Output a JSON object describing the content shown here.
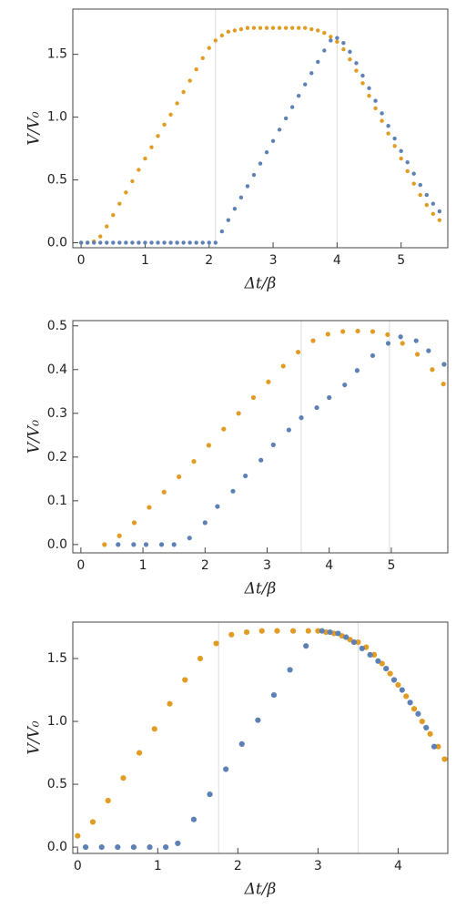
{
  "chart_data": [
    {
      "type": "scatter",
      "xlabel": "Δt/β",
      "ylabel": "V/V₀",
      "xlim": [
        -0.13,
        5.73
      ],
      "ylim": [
        -0.04,
        1.86
      ],
      "xticks": [
        0,
        1,
        2,
        3,
        4,
        5
      ],
      "yticks": [
        {
          "value": 0,
          "label": "0.0"
        },
        0.5,
        {
          "value": 1,
          "label": "1.0"
        },
        1.5
      ],
      "vlines": [
        2.1,
        4.0
      ],
      "series": [
        {
          "color": "#e19c24",
          "x": [
            0,
            0.1,
            0.2,
            0.3,
            0.4,
            0.5,
            0.6,
            0.7,
            0.8,
            0.9,
            1,
            1.1,
            1.2,
            1.3,
            1.4,
            1.5,
            1.6,
            1.7,
            1.8,
            1.9,
            2,
            2.1,
            2.2,
            2.3,
            2.4,
            2.5,
            2.6,
            2.7,
            2.8,
            2.9,
            3,
            3.1,
            3.2,
            3.3,
            3.4,
            3.5,
            3.6,
            3.7,
            3.8,
            3.9,
            4,
            4.1,
            4.2,
            4.3,
            4.4,
            4.5,
            4.6,
            4.7,
            4.8,
            4.9,
            5,
            5.1,
            5.2,
            5.3,
            5.4,
            5.5,
            5.6
          ],
          "values": [
            0,
            0,
            0.01,
            0.05,
            0.13,
            0.22,
            0.31,
            0.4,
            0.49,
            0.58,
            0.67,
            0.76,
            0.85,
            0.94,
            1.02,
            1.11,
            1.2,
            1.29,
            1.38,
            1.47,
            1.55,
            1.61,
            1.65,
            1.68,
            1.69,
            1.7,
            1.71,
            1.71,
            1.71,
            1.71,
            1.71,
            1.71,
            1.71,
            1.71,
            1.71,
            1.71,
            1.7,
            1.69,
            1.67,
            1.64,
            1.6,
            1.54,
            1.46,
            1.37,
            1.27,
            1.17,
            1.07,
            0.97,
            0.87,
            0.77,
            0.67,
            0.57,
            0.47,
            0.38,
            0.3,
            0.23,
            0.18
          ]
        },
        {
          "color": "#5e81b5",
          "x": [
            0,
            0.1,
            0.2,
            0.3,
            0.4,
            0.5,
            0.6,
            0.7,
            0.8,
            0.9,
            1,
            1.1,
            1.2,
            1.3,
            1.4,
            1.5,
            1.6,
            1.7,
            1.8,
            1.9,
            2,
            2.1,
            2.2,
            2.3,
            2.4,
            2.5,
            2.6,
            2.7,
            2.8,
            2.9,
            3,
            3.1,
            3.2,
            3.3,
            3.4,
            3.5,
            3.6,
            3.7,
            3.8,
            3.9,
            4,
            4.1,
            4.2,
            4.3,
            4.4,
            4.5,
            4.6,
            4.7,
            4.8,
            4.9,
            5,
            5.1,
            5.2,
            5.3,
            5.4,
            5.5,
            5.6
          ],
          "values": [
            0,
            0,
            0,
            0,
            0,
            0,
            0,
            0,
            0,
            0,
            0,
            0,
            0,
            0,
            0,
            0,
            0,
            0,
            0,
            0,
            0,
            0,
            0.09,
            0.18,
            0.27,
            0.36,
            0.45,
            0.54,
            0.63,
            0.72,
            0.81,
            0.9,
            0.99,
            1.08,
            1.17,
            1.26,
            1.35,
            1.44,
            1.53,
            1.61,
            1.63,
            1.59,
            1.52,
            1.43,
            1.33,
            1.23,
            1.13,
            1.03,
            0.93,
            0.83,
            0.73,
            0.64,
            0.55,
            0.46,
            0.38,
            0.31,
            0.25
          ]
        }
      ]
    },
    {
      "type": "scatter",
      "xlabel": "Δt/β",
      "ylabel": "V/V₀",
      "xlim": [
        -0.13,
        5.91
      ],
      "ylim": [
        -0.019,
        0.512
      ],
      "xticks": [
        0,
        1,
        2,
        3,
        4,
        5
      ],
      "yticks": [
        {
          "value": 0,
          "label": "0.0"
        },
        0.1,
        0.2,
        0.3,
        0.4,
        0.5
      ],
      "vlines": [
        3.55,
        4.97
      ],
      "series": [
        {
          "color": "#e19c24",
          "x": [
            0.38,
            0.62,
            0.86,
            1.1,
            1.34,
            1.58,
            1.82,
            2.06,
            2.3,
            2.54,
            2.78,
            3.02,
            3.26,
            3.5,
            3.74,
            3.98,
            4.22,
            4.46,
            4.7,
            4.94,
            5.18,
            5.42,
            5.66,
            5.84
          ],
          "values": [
            0,
            0.02,
            0.05,
            0.085,
            0.12,
            0.155,
            0.19,
            0.227,
            0.264,
            0.3,
            0.336,
            0.372,
            0.408,
            0.44,
            0.466,
            0.481,
            0.487,
            0.488,
            0.487,
            0.48,
            0.46,
            0.435,
            0.4,
            0.367
          ]
        },
        {
          "color": "#5e81b5",
          "x": [
            0.6,
            0.85,
            1.05,
            1.3,
            1.5,
            1.75,
            2,
            2.2,
            2.45,
            2.65,
            2.9,
            3.1,
            3.35,
            3.55,
            3.8,
            4,
            4.25,
            4.45,
            4.7,
            4.95,
            5.15,
            5.4,
            5.6,
            5.85
          ],
          "values": [
            0,
            0,
            0,
            0,
            0,
            0.015,
            0.05,
            0.087,
            0.122,
            0.157,
            0.193,
            0.228,
            0.262,
            0.29,
            0.313,
            0.336,
            0.365,
            0.398,
            0.432,
            0.46,
            0.475,
            0.466,
            0.443,
            0.412
          ]
        }
      ]
    },
    {
      "type": "scatter",
      "xlabel": "Δt/β",
      "ylabel": "V/V₀",
      "xlim": [
        -0.06,
        4.62
      ],
      "ylim": [
        -0.05,
        1.79
      ],
      "xticks": [
        0,
        1,
        2,
        3,
        4
      ],
      "yticks": [
        {
          "value": 0,
          "label": "0.0"
        },
        0.5,
        {
          "value": 1,
          "label": "1.0"
        },
        1.5
      ],
      "vlines": [
        1.76,
        3.5
      ],
      "series": [
        {
          "color": "#e19c24",
          "x": [
            0,
            0.19,
            0.38,
            0.57,
            0.77,
            0.96,
            1.15,
            1.34,
            1.53,
            1.73,
            1.92,
            2.11,
            2.3,
            2.49,
            2.69,
            2.88,
            3,
            3.1,
            3.2,
            3.3,
            3.4,
            3.5,
            3.6,
            3.7,
            3.8,
            3.9,
            4,
            4.1,
            4.2,
            4.3,
            4.4,
            4.5,
            4.58
          ],
          "values": [
            0.09,
            0.2,
            0.37,
            0.55,
            0.75,
            0.94,
            1.14,
            1.33,
            1.5,
            1.62,
            1.69,
            1.71,
            1.72,
            1.72,
            1.72,
            1.72,
            1.72,
            1.71,
            1.7,
            1.68,
            1.65,
            1.63,
            1.59,
            1.53,
            1.46,
            1.38,
            1.29,
            1.2,
            1.1,
            1,
            0.9,
            0.8,
            0.7
          ]
        },
        {
          "color": "#5e81b5",
          "x": [
            0.1,
            0.3,
            0.5,
            0.7,
            0.9,
            1.1,
            1.25,
            1.45,
            1.65,
            1.85,
            2.05,
            2.25,
            2.45,
            2.65,
            2.85,
            3.05,
            3.15,
            3.25,
            3.35,
            3.45,
            3.55,
            3.65,
            3.75,
            3.85,
            3.95,
            4.05,
            4.15,
            4.25,
            4.35,
            4.45
          ],
          "values": [
            0,
            0,
            0,
            0,
            0,
            0,
            0.03,
            0.22,
            0.42,
            0.62,
            0.82,
            1.01,
            1.21,
            1.41,
            1.6,
            1.72,
            1.71,
            1.7,
            1.67,
            1.63,
            1.58,
            1.53,
            1.48,
            1.42,
            1.33,
            1.25,
            1.15,
            1.06,
            0.95,
            0.8
          ]
        }
      ]
    }
  ]
}
